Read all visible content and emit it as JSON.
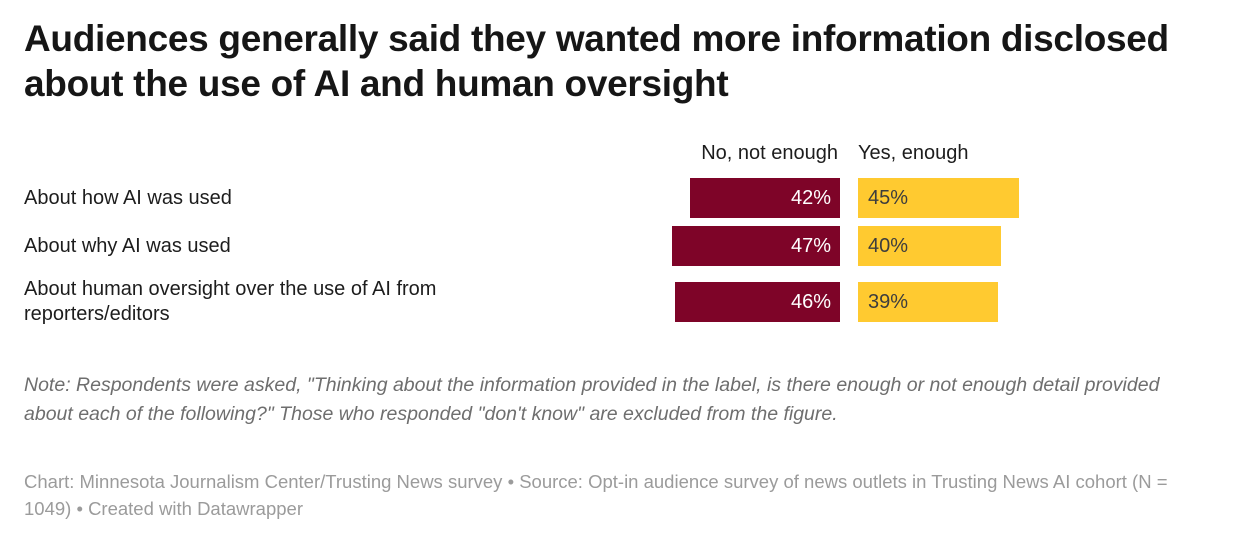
{
  "title": "Audiences generally said they wanted more information disclosed about the use of AI and human oversight",
  "chart_data": {
    "type": "bar",
    "variant": "paired-horizontal",
    "title": "Audiences generally said they wanted more information disclosed about the use of AI and human oversight",
    "categories": [
      "About how AI was used",
      "About why AI was used",
      "About human oversight over the use of AI from reporters/editors"
    ],
    "series": [
      {
        "name": "No, not enough",
        "color": "#7e0428",
        "label_color": "#ffffff",
        "values": [
          42,
          47,
          46
        ]
      },
      {
        "name": "Yes, enough",
        "color": "#ffca30",
        "label_color": "#3d3d3d",
        "values": [
          45,
          40,
          39
        ]
      }
    ],
    "value_suffix": "%",
    "xlim": [
      0,
      50
    ],
    "grid": false,
    "legend_position": "column-headers-above-bars"
  },
  "note": "Note: Respondents were asked, \"Thinking about the information provided in the label, is there enough or not enough detail provided about each of the following?\" Those who responded \"don't know\" are excluded from the figure.",
  "credit": "Chart: Minnesota Journalism Center/Trusting News survey • Source: Opt-in audience survey of news outlets in Trusting News AI cohort (N = 1049) • Created with Datawrapper"
}
